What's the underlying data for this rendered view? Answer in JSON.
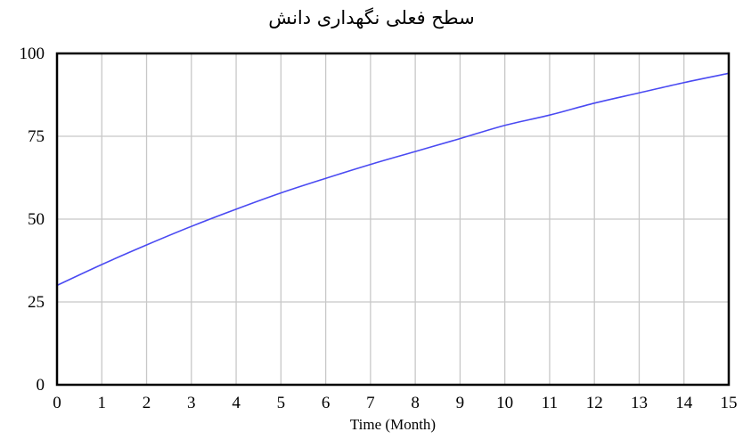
{
  "chart_data": {
    "type": "line",
    "title": "سطح فعلی نگهداری دانش",
    "xlabel": "Time (Month)",
    "ylabel": "",
    "xlim": [
      0,
      15
    ],
    "ylim": [
      0,
      100
    ],
    "x_ticks": [
      "0",
      "1",
      "2",
      "3",
      "4",
      "5",
      "6",
      "7",
      "8",
      "9",
      "10",
      "11",
      "12",
      "13",
      "14",
      "15"
    ],
    "y_ticks": [
      "0",
      "25",
      "50",
      "75",
      "100"
    ],
    "grid": true,
    "series": [
      {
        "color": "#4a4af2",
        "x": [
          0,
          1,
          2,
          3,
          4,
          5,
          6,
          7,
          8,
          9,
          10,
          11,
          12,
          13,
          14,
          15
        ],
        "y": [
          30,
          36.3,
          42.2,
          47.8,
          53,
          57.9,
          62.3,
          66.5,
          70.4,
          74.3,
          78.3,
          81.4,
          85,
          88.1,
          91.2,
          94
        ]
      }
    ]
  }
}
